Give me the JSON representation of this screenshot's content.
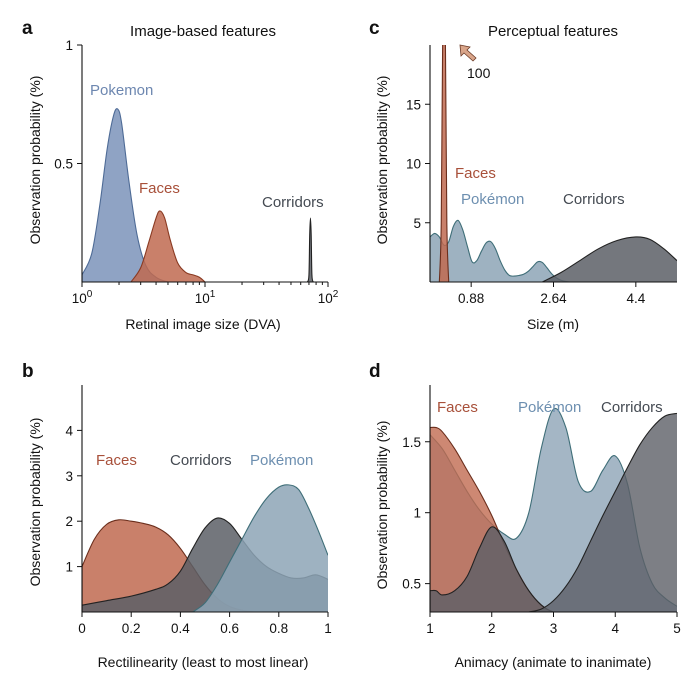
{
  "colors": {
    "faces": "#c06a50",
    "pokemon": "#7b93ba",
    "pokemon_edge": "#4e6b96",
    "pokemon_c": "#8da4b6",
    "pokemon_c_edge": "#3f6e78",
    "corridors": "#5c5f66"
  },
  "panels": {
    "a": {
      "letter": "a",
      "title": "Image-based features",
      "ylabel": "Observation probability (%)",
      "xlabel": "Retinal image size (DVA)"
    },
    "b": {
      "letter": "b",
      "title": "",
      "ylabel": "Observation probability (%)",
      "xlabel": "Rectilinearity (least to most linear)"
    },
    "c": {
      "letter": "c",
      "title": "Perceptual features",
      "ylabel": "Observation probability (%)",
      "xlabel": "Size (m)",
      "annotation": "100"
    },
    "d": {
      "letter": "d",
      "title": "",
      "ylabel": "Observation probability (%)",
      "xlabel": "Animacy (animate to inanimate)"
    }
  },
  "chart_data": [
    {
      "panel": "a",
      "type": "area",
      "xscale": "log",
      "xlim": [
        1,
        100
      ],
      "ylim": [
        0,
        1
      ],
      "yticks": [
        0.5,
        1
      ],
      "ytick_labels": [
        "0.5",
        "1"
      ],
      "xticks": [
        1,
        10,
        100
      ],
      "xtick_labels": [
        [
          "10",
          "0"
        ],
        [
          "10",
          "1"
        ],
        [
          "10",
          "2"
        ]
      ],
      "series": [
        {
          "name": "Pokemon",
          "color_key": "pokemon",
          "x": [
            1.0,
            1.2,
            1.4,
            1.6,
            1.8,
            1.95,
            2.1,
            2.4,
            2.8,
            3.3,
            4.0,
            5.0
          ],
          "y": [
            0.03,
            0.12,
            0.33,
            0.56,
            0.7,
            0.73,
            0.67,
            0.43,
            0.2,
            0.07,
            0.02,
            0.0
          ]
        },
        {
          "name": "Faces",
          "color_key": "faces",
          "x": [
            2.5,
            3.0,
            3.5,
            4.0,
            4.3,
            4.7,
            5.2,
            6.0,
            7.0,
            8.0,
            9.0,
            10.0
          ],
          "y": [
            0.0,
            0.06,
            0.17,
            0.27,
            0.3,
            0.27,
            0.18,
            0.08,
            0.04,
            0.03,
            0.02,
            0.0
          ]
        },
        {
          "name": "Corridors",
          "color_key": "corridors",
          "x": [
            68,
            70,
            71,
            72,
            73,
            74,
            76
          ],
          "y": [
            0.0,
            0.03,
            0.2,
            0.27,
            0.2,
            0.03,
            0.0
          ]
        }
      ]
    },
    {
      "panel": "b",
      "type": "area",
      "xlim": [
        0,
        1
      ],
      "ylim": [
        0,
        5
      ],
      "yticks": [
        1,
        2,
        3,
        4
      ],
      "ytick_labels": [
        "1",
        "2",
        "3",
        "4"
      ],
      "xticks": [
        0,
        0.2,
        0.4,
        0.6,
        0.8,
        1
      ],
      "xtick_labels": [
        "0",
        "0.2",
        "0.4",
        "0.6",
        "0.8",
        "1"
      ],
      "series": [
        {
          "name": "Faces",
          "color_key": "faces",
          "x": [
            0.0,
            0.05,
            0.1,
            0.15,
            0.2,
            0.25,
            0.3,
            0.35,
            0.4,
            0.45,
            0.5,
            0.55,
            0.6,
            0.65,
            0.7
          ],
          "y": [
            1.0,
            1.6,
            1.93,
            2.03,
            2.0,
            1.95,
            1.87,
            1.7,
            1.4,
            1.0,
            0.6,
            0.3,
            0.12,
            0.04,
            0.0
          ]
        },
        {
          "name": "Corridors",
          "color_key": "corridors",
          "x": [
            0.0,
            0.1,
            0.2,
            0.3,
            0.35,
            0.4,
            0.45,
            0.5,
            0.55,
            0.6,
            0.65,
            0.7,
            0.75,
            0.8,
            0.85,
            0.9,
            0.95,
            1.0
          ],
          "y": [
            0.15,
            0.25,
            0.35,
            0.5,
            0.62,
            0.9,
            1.4,
            1.85,
            2.07,
            1.95,
            1.6,
            1.25,
            1.0,
            0.85,
            0.75,
            0.75,
            0.82,
            0.72
          ]
        },
        {
          "name": "Pokémon",
          "color_key": "pokemon_c",
          "x": [
            0.45,
            0.5,
            0.55,
            0.6,
            0.65,
            0.7,
            0.75,
            0.8,
            0.84,
            0.88,
            0.92,
            0.96,
            1.0
          ],
          "y": [
            0.0,
            0.2,
            0.6,
            1.1,
            1.6,
            2.1,
            2.5,
            2.75,
            2.8,
            2.7,
            2.3,
            1.8,
            1.25
          ]
        }
      ],
      "label_order": [
        "Faces",
        "Corridors",
        "Pokémon"
      ]
    },
    {
      "panel": "c",
      "type": "area",
      "xlim": [
        0,
        5.28
      ],
      "ylim": [
        0,
        20
      ],
      "yticks": [
        5,
        10,
        15
      ],
      "ytick_labels": [
        "5",
        "10",
        "15"
      ],
      "xticks": [
        0.88,
        2.64,
        4.4
      ],
      "xtick_labels": [
        "0.88",
        "2.64",
        "4.4"
      ],
      "series": [
        {
          "name": "Pokémon",
          "color_key": "pokemon_c",
          "x": [
            0.0,
            0.1,
            0.2,
            0.3,
            0.4,
            0.5,
            0.6,
            0.7,
            0.8,
            0.9,
            1.0,
            1.1,
            1.2,
            1.3,
            1.4,
            1.5,
            1.6,
            1.7,
            1.8,
            1.9,
            2.0,
            2.1,
            2.2,
            2.3,
            2.4,
            2.5,
            2.6,
            2.7,
            2.8,
            2.9,
            3.0
          ],
          "y": [
            3.8,
            4.1,
            3.8,
            3.1,
            3.4,
            4.7,
            5.2,
            4.4,
            3.0,
            1.7,
            1.8,
            2.6,
            3.3,
            3.4,
            2.8,
            1.8,
            1.0,
            0.55,
            0.5,
            0.55,
            0.65,
            0.9,
            1.3,
            1.7,
            1.65,
            1.2,
            0.7,
            0.35,
            0.15,
            0.05,
            0.0
          ]
        },
        {
          "name": "Faces",
          "color_key": "faces",
          "x": [
            0.2,
            0.24,
            0.27,
            0.3,
            0.33,
            0.36,
            0.4
          ],
          "y": [
            0.0,
            5.0,
            20.0,
            20.0,
            20.0,
            5.0,
            0.0
          ]
        },
        {
          "name": "Corridors",
          "color_key": "corridors",
          "x": [
            2.4,
            2.8,
            3.2,
            3.6,
            4.0,
            4.4,
            4.7,
            5.0,
            5.28
          ],
          "y": [
            0.0,
            0.8,
            1.8,
            2.8,
            3.5,
            3.8,
            3.6,
            2.8,
            1.8
          ]
        }
      ]
    },
    {
      "panel": "d",
      "type": "area",
      "xlim": [
        1,
        5
      ],
      "ylim": [
        0.3,
        1.9
      ],
      "yticks": [
        0.5,
        1,
        1.5
      ],
      "ytick_labels": [
        "0.5",
        "1",
        "1.5"
      ],
      "xticks": [
        1,
        2,
        3,
        4,
        5
      ],
      "xtick_labels": [
        "1",
        "2",
        "3",
        "4",
        "5"
      ],
      "series": [
        {
          "name": "Pokémon",
          "color_key": "pokemon_c",
          "x": [
            1.0,
            1.2,
            1.4,
            1.6,
            1.8,
            2.0,
            2.2,
            2.4,
            2.6,
            2.8,
            3.0,
            3.2,
            3.4,
            3.6,
            3.8,
            4.0,
            4.2,
            4.4,
            4.6,
            4.8,
            5.0
          ],
          "y": [
            1.55,
            1.45,
            1.3,
            1.15,
            1.02,
            0.92,
            0.85,
            0.82,
            1.0,
            1.45,
            1.73,
            1.6,
            1.22,
            1.15,
            1.3,
            1.4,
            1.2,
            0.75,
            0.5,
            0.4,
            0.34
          ]
        },
        {
          "name": "Faces",
          "color_key": "faces",
          "x": [
            1.0,
            1.1,
            1.2,
            1.4,
            1.6,
            1.8,
            2.0,
            2.2,
            2.4,
            2.6,
            2.8,
            3.0,
            3.2
          ],
          "y": [
            1.6,
            1.6,
            1.57,
            1.45,
            1.3,
            1.15,
            0.98,
            0.78,
            0.6,
            0.45,
            0.35,
            0.3,
            0.3
          ]
        },
        {
          "name": "Corridors",
          "color_key": "corridors",
          "x": [
            1.0,
            1.1,
            1.2,
            1.4,
            1.6,
            1.8,
            2.0,
            2.2,
            2.4,
            2.6,
            2.8,
            3.0,
            3.2
          ],
          "y": [
            0.45,
            0.45,
            0.42,
            0.45,
            0.55,
            0.75,
            0.9,
            0.8,
            0.6,
            0.45,
            0.35,
            0.3,
            0.3
          ]
        },
        {
          "name": "Corridors",
          "color_key": "corridors",
          "x": [
            2.6,
            2.8,
            3.0,
            3.2,
            3.4,
            3.6,
            3.8,
            4.0,
            4.2,
            4.4,
            4.6,
            4.8,
            5.0
          ],
          "y": [
            0.3,
            0.32,
            0.38,
            0.48,
            0.62,
            0.8,
            0.98,
            1.15,
            1.32,
            1.48,
            1.6,
            1.68,
            1.7
          ]
        }
      ]
    }
  ]
}
